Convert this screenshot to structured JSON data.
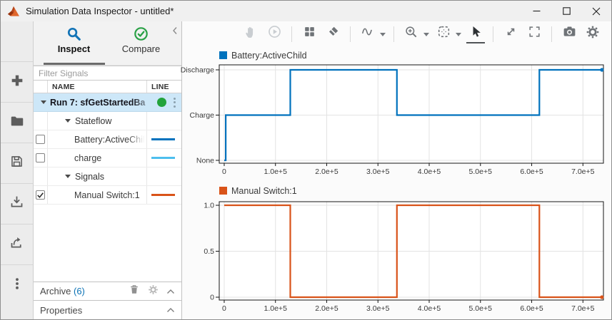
{
  "window": {
    "title": "Simulation Data Inspector - untitled*",
    "controls": [
      {
        "name": "minimize"
      },
      {
        "name": "maximize"
      },
      {
        "name": "close"
      }
    ]
  },
  "left_toolbar": {
    "items": [
      {
        "icon": "plus-icon",
        "action": "add"
      },
      {
        "icon": "folder-icon",
        "action": "open"
      },
      {
        "icon": "save-icon",
        "action": "save"
      },
      {
        "icon": "import-icon",
        "action": "import"
      },
      {
        "icon": "export-icon",
        "action": "export"
      },
      {
        "icon": "kebab-icon",
        "action": "more-options"
      }
    ]
  },
  "sidebar": {
    "tabs": [
      {
        "label": "Inspect",
        "icon": "search-icon",
        "active": true
      },
      {
        "label": "Compare",
        "icon": "check-circle-icon",
        "active": false
      }
    ],
    "filter": {
      "placeholder": "Filter Signals"
    },
    "table": {
      "columns": [
        "NAME",
        "LINE"
      ],
      "rows": [
        {
          "type": "run",
          "label": "Run 7: sfGetStartedBa",
          "selected": true,
          "expanded": true,
          "status_color": "#23a33b",
          "has_menu": true,
          "truncated": true
        },
        {
          "type": "group",
          "label": "Stateflow",
          "expanded": true
        },
        {
          "type": "signal",
          "label": "Battery:ActiveChil",
          "checked": false,
          "line_color": "#0072BD",
          "truncated": true
        },
        {
          "type": "signal",
          "label": "charge",
          "checked": false,
          "line_color": "#4DBEEE",
          "truncated": false
        },
        {
          "type": "group",
          "label": "Signals",
          "expanded": true
        },
        {
          "type": "signal",
          "label": "Manual Switch:1",
          "checked": true,
          "line_color": "#D95319",
          "truncated": false
        }
      ]
    },
    "archive": {
      "label": "Archive",
      "count": "(6)",
      "count_color": "#0b72b5",
      "icons": [
        "trash-icon",
        "gear-icon",
        "chevron-up-icon"
      ]
    },
    "properties": {
      "label": "Properties",
      "icons": [
        "chevron-up-icon"
      ]
    }
  },
  "charts_toolbar": {
    "items": [
      {
        "icon": "hand-pan-icon",
        "disabled": true
      },
      {
        "icon": "replay-icon",
        "disabled": true
      },
      {
        "divider": true
      },
      {
        "icon": "layout-grid-icon"
      },
      {
        "icon": "eraser-icon"
      },
      {
        "divider": true
      },
      {
        "icon": "signal-wave-icon",
        "caret": true
      },
      {
        "divider": true
      },
      {
        "icon": "zoom-in-icon",
        "caret": true
      },
      {
        "icon": "fit-view-icon",
        "caret": true
      },
      {
        "icon": "cursor-arrow-icon",
        "active": true
      },
      {
        "divider": true
      },
      {
        "icon": "expand-icon"
      },
      {
        "icon": "fullscreen-icon"
      },
      {
        "divider": true
      },
      {
        "icon": "camera-icon"
      },
      {
        "icon": "gear-icon"
      }
    ]
  },
  "chart_data": [
    {
      "type": "line",
      "subtype": "step",
      "title": "Battery:ActiveChild",
      "color": "#0072BD",
      "legend_position": "top-left",
      "grid": true,
      "xlim": [
        -9700,
        740000
      ],
      "ylim": [
        -0.063,
        2.11
      ],
      "xticks": [
        {
          "v": 0,
          "label": "0"
        },
        {
          "v": 100000,
          "label": "1.0e+5"
        },
        {
          "v": 200000,
          "label": "2.0e+5"
        },
        {
          "v": 300000,
          "label": "3.0e+5"
        },
        {
          "v": 400000,
          "label": "4.0e+5"
        },
        {
          "v": 500000,
          "label": "5.0e+5"
        },
        {
          "v": 600000,
          "label": "6.0e+5"
        },
        {
          "v": 700000,
          "label": "7.0e+5"
        }
      ],
      "yticks": [
        {
          "v": 2,
          "label": "Discharge"
        },
        {
          "v": 1,
          "label": "Charge"
        },
        {
          "v": 0,
          "label": "None"
        }
      ],
      "points": [
        [
          0,
          0
        ],
        [
          3000,
          0
        ],
        [
          3000,
          1
        ],
        [
          129000,
          1
        ],
        [
          129000,
          2
        ],
        [
          337000,
          2
        ],
        [
          337000,
          1
        ],
        [
          615000,
          1
        ],
        [
          615000,
          2
        ],
        [
          737000,
          2
        ]
      ],
      "value_names": {
        "0": "None",
        "1": "Charge",
        "2": "Discharge"
      }
    },
    {
      "type": "line",
      "subtype": "step",
      "title": "Manual Switch:1",
      "color": "#D95319",
      "legend_position": "top-left",
      "grid": true,
      "xlim": [
        -9700,
        740000
      ],
      "ylim": [
        -0.031,
        1.039
      ],
      "xticks": [
        {
          "v": 0,
          "label": "0"
        },
        {
          "v": 100000,
          "label": "1.0e+5"
        },
        {
          "v": 200000,
          "label": "2.0e+5"
        },
        {
          "v": 300000,
          "label": "3.0e+5"
        },
        {
          "v": 400000,
          "label": "4.0e+5"
        },
        {
          "v": 500000,
          "label": "5.0e+5"
        },
        {
          "v": 600000,
          "label": "6.0e+5"
        },
        {
          "v": 700000,
          "label": "7.0e+5"
        }
      ],
      "yticks": [
        {
          "v": 1,
          "label": "1.0"
        },
        {
          "v": 0.5,
          "label": "0.5"
        },
        {
          "v": 0,
          "label": "0"
        }
      ],
      "points": [
        [
          0,
          1
        ],
        [
          129000,
          1
        ],
        [
          129000,
          0
        ],
        [
          337000,
          0
        ],
        [
          337000,
          1
        ],
        [
          615000,
          1
        ],
        [
          615000,
          0
        ],
        [
          737000,
          0
        ]
      ]
    }
  ],
  "colors": {
    "accent_blue": "#0072BD",
    "light_blue": "#4DBEEE",
    "orange": "#D95319",
    "selected_row": "#cde7f8",
    "run_status_green": "#23a33b"
  }
}
